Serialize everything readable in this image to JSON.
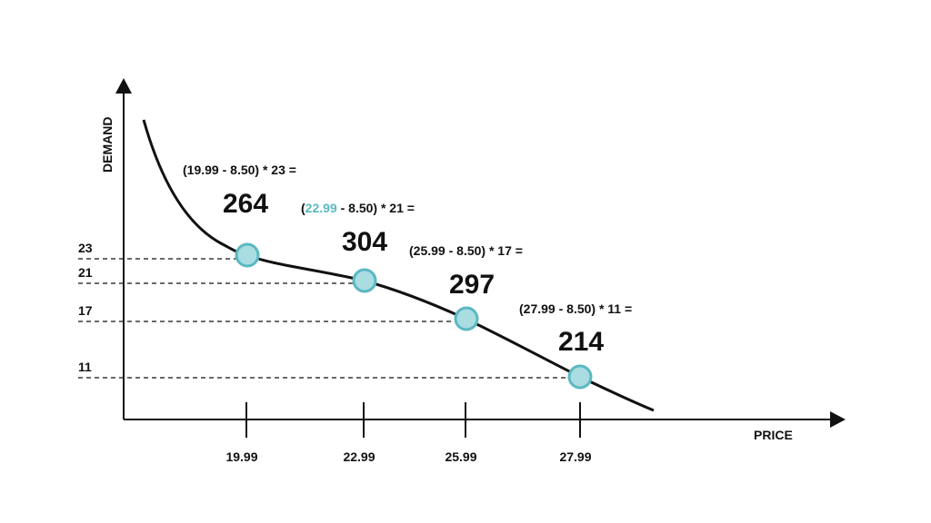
{
  "colors": {
    "accent": "#5bb8c1",
    "ink": "#111111",
    "marker_fill": "#a9dde2"
  },
  "chart_data": {
    "type": "line",
    "xlabel": "PRICE",
    "ylabel": "DEMAND",
    "x_ticks": [
      "19.99",
      "22.99",
      "25.99",
      "27.99"
    ],
    "y_ticks": [
      "23",
      "21",
      "17",
      "11"
    ],
    "points": [
      {
        "price": 19.99,
        "demand": 23,
        "formula_price": "19.99",
        "formula_rest": " - 8.50) * 23 =",
        "result": "264",
        "highlight": false
      },
      {
        "price": 22.99,
        "demand": 21,
        "formula_price": "22.99",
        "formula_rest": " - 8.50) * 21 =",
        "result": "304",
        "highlight": true
      },
      {
        "price": 25.99,
        "demand": 17,
        "formula_price": "25.99",
        "formula_rest": " - 8.50) * 17 =",
        "result": "297",
        "highlight": false
      },
      {
        "price": 27.99,
        "demand": 11,
        "formula_price": "27.99",
        "formula_rest": " - 8.50) * 11 =",
        "result": "214",
        "highlight": false
      }
    ]
  }
}
